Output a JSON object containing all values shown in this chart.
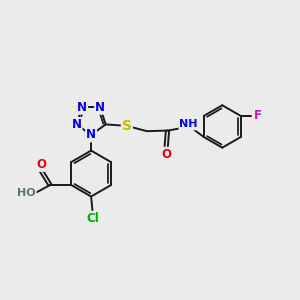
{
  "bg_color": "#ebebeb",
  "bond_color": "#1a1a1a",
  "bond_width": 1.4,
  "atom_colors": {
    "N": "#0000ee",
    "O": "#ee0000",
    "S": "#ccbb00",
    "Cl": "#00aa00",
    "F": "#dd00dd",
    "H": "#607070",
    "C": "#1a1a1a"
  },
  "font_size": 8.5,
  "figsize": [
    3.0,
    3.0
  ],
  "dpi": 100,
  "xlim": [
    0,
    10
  ],
  "ylim": [
    0,
    10
  ]
}
